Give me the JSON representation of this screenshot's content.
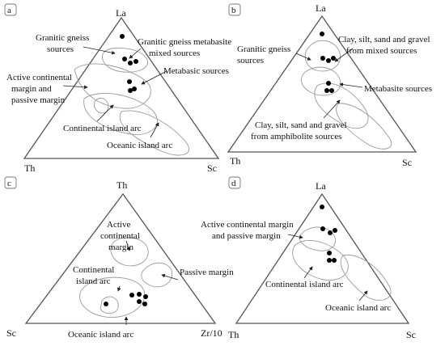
{
  "panels": {
    "a": {
      "label": "a",
      "apex_top": "La",
      "apex_left": "Th",
      "apex_right": "Sc",
      "labels": {
        "granitic_gneiss": [
          "Granitic gneiss",
          "sources"
        ],
        "granitic_metabasite": [
          "Granitic gneiss metabasite",
          "mixed sources"
        ],
        "active_margin": [
          "Active continental",
          "margin and",
          "passive margin"
        ],
        "metabasic": [
          "Metabasic sources"
        ],
        "continental_arc": [
          "Continental island arc"
        ],
        "oceanic_arc": [
          "Oceanic island arc"
        ]
      }
    },
    "b": {
      "label": "b",
      "apex_top": "La",
      "apex_left": "Th",
      "apex_right": "Sc",
      "labels": {
        "granitic_gneiss": [
          "Granitic gneiss",
          "sources"
        ],
        "mixed": [
          "Clay, silt, sand and gravel",
          "from mixed sources"
        ],
        "metabasite": [
          "Metabasite sources"
        ],
        "amphibolite": [
          "Clay, silt, sand and gravel",
          "from amphibolite sources"
        ]
      }
    },
    "c": {
      "label": "c",
      "apex_top": "Th",
      "apex_left": "Sc",
      "apex_right": "Zr/10",
      "labels": {
        "active_margin": [
          "Active",
          "continental",
          "margin"
        ],
        "continental_arc": [
          "Continental",
          "island arc"
        ],
        "passive_margin": [
          "Passive margin"
        ],
        "oceanic_arc": [
          "Oceanic island arc"
        ]
      }
    },
    "d": {
      "label": "d",
      "apex_top": "La",
      "apex_left": "Th",
      "apex_right": "Sc",
      "labels": {
        "active_margin": [
          "Active continental margin",
          "and passive margin"
        ],
        "continental_arc": [
          "Continental island arc"
        ],
        "oceanic_arc": [
          "Oceanic island arc"
        ]
      }
    }
  }
}
